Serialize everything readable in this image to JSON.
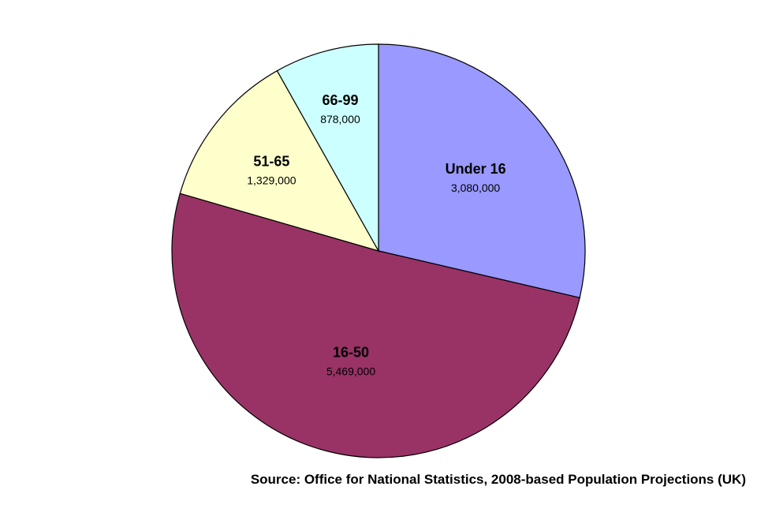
{
  "chart_data": {
    "type": "pie",
    "title": "",
    "categories": [
      "Under 16",
      "16-50",
      "51-65",
      "66-99"
    ],
    "values": [
      3080000,
      5469000,
      1329000,
      878000
    ],
    "value_labels": [
      "3,080,000",
      "5,469,000",
      "1,329,000",
      "878,000"
    ],
    "colors": [
      "#9999FF",
      "#993366",
      "#FFFFCC",
      "#CCFFFF"
    ],
    "slice_border_color": "#000000",
    "start_angle_deg": 0,
    "direction": "clockwise",
    "legend": "none",
    "label_position": "inside"
  },
  "source_note": "Source: Office for National Statistics, 2008-based Population Projections (UK)"
}
